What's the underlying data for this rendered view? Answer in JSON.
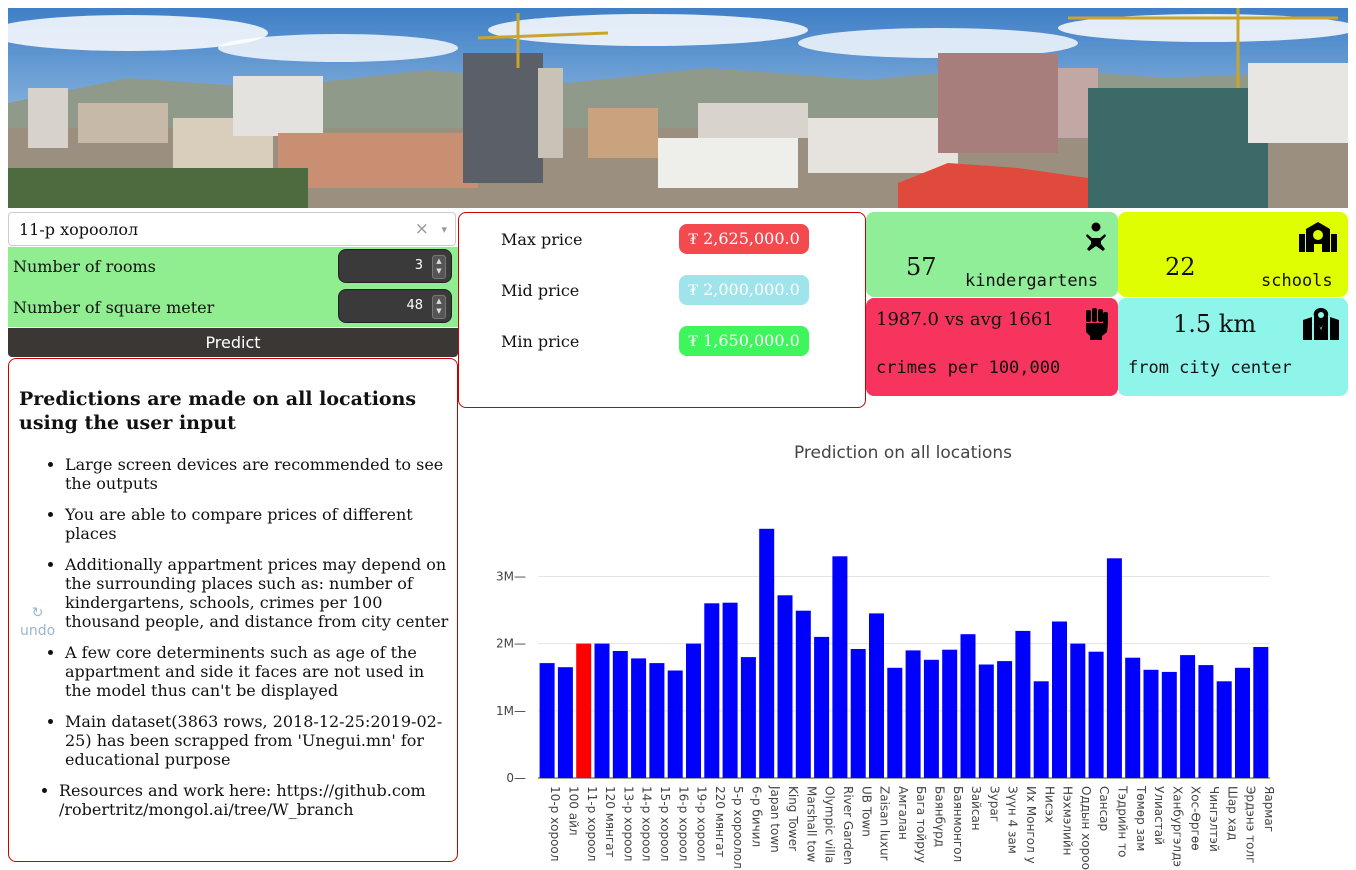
{
  "location_select": {
    "value": "11-р хороолол",
    "clear_icon": "×",
    "arrow_icon": "▾"
  },
  "inputs": {
    "rooms_label": "Number of rooms",
    "rooms_value": "3",
    "sqm_label": "Number of square meter",
    "sqm_value": "48"
  },
  "predict_label": "Predict",
  "info": {
    "heading": "Predictions are made on all locations using the user input",
    "bullets": [
      "Large screen devices are recommended to see the outputs",
      "You are able to compare prices of different places",
      "Additionally appartment prices may depend on the surrounding places such as: number of kindergartens, schools, crimes per 100 thousand people, and distance from city center",
      "A few core determinents such as age of the appartment and side it faces are not used in the model thus can't be displayed",
      "Main dataset(3863 rows, 2018-12-25:2019-02-25) has been scrapped from 'Unegui.mn' for educational purpose",
      "Resources and work here: https://github.com /robertritz/mongol.ai/tree/W_branch"
    ],
    "undo_icon": "↻",
    "undo_label": "undo"
  },
  "prices": {
    "max_label": "Max price",
    "max_value": "₮ 2,625,000.0",
    "max_color": "#f44a4f",
    "mid_label": "Mid price",
    "mid_value": "₮ 2,000,000.0",
    "mid_color": "#9ee4ea",
    "min_label": "Min price",
    "min_value": "₮ 1,650,000.0",
    "min_color": "#3ef55b"
  },
  "stats": {
    "kindergartens": {
      "value": "57",
      "label": "kindergartens",
      "icon": "baby-icon",
      "color": "#90ee98"
    },
    "schools": {
      "value": "22",
      "label": "schools",
      "icon": "school-icon",
      "color": "#dfff00"
    },
    "crimes": {
      "value": "1987.0 vs avg 1661",
      "label": "crimes per 100,000",
      "icon": "fist-icon",
      "color": "#f7345e"
    },
    "distance": {
      "value": "1.5 km",
      "label": "from city center",
      "icon": "map-marker-icon",
      "color": "#8ff5ea"
    }
  },
  "chart_data": {
    "type": "bar",
    "title": "Prediction on all locations",
    "xlabel": "",
    "ylabel": "",
    "ylim": [
      0,
      3900000
    ],
    "yticks": [
      0,
      1000000,
      2000000,
      3000000
    ],
    "ytick_labels": [
      "0",
      "1M",
      "2M",
      "3M"
    ],
    "bar_color": "#0000ff",
    "highlight_color": "#ff0000",
    "highlight_index": 2,
    "categories": [
      "10-р хороол",
      "100 айл",
      "11-р хороол",
      "120 мянгат",
      "13-р хороол",
      "14-р хороол",
      "15-р хороол",
      "16-р хороол",
      "19-р хороол",
      "220 мянгат",
      "5-р хороолол",
      "6-р бичил",
      "Japan town",
      "King Tower",
      "Marshall tow",
      "Olympic villa",
      "River Garden",
      "UB Town",
      "Zaisan luxur",
      "Амгалан",
      "Бага тойруу",
      "Баянбүрд",
      "Баянмонгол",
      "Зайсан",
      "Зураг",
      "Зүүн 4 зам",
      "Их Монгол у",
      "Нисэх",
      "Нэхмэлийн",
      "Оддын хороо",
      "Сансар",
      "Тэдрийн то",
      "Төмөр зам",
      "Улиастай",
      "Ханбургэлдэ",
      "Хос-Өргөө",
      "Чингэлтэй",
      "Шар хад",
      "Эрдэнэ толг",
      "Яармаг"
    ],
    "values": [
      1710000,
      1650000,
      2000000,
      2000000,
      1890000,
      1780000,
      1710000,
      1600000,
      2000000,
      2600000,
      2610000,
      1800000,
      3710000,
      2720000,
      2490000,
      2100000,
      3300000,
      1920000,
      2450000,
      1640000,
      1900000,
      1760000,
      1910000,
      2140000,
      1690000,
      1740000,
      2190000,
      1440000,
      2330000,
      2000000,
      1880000,
      3270000,
      1790000,
      1610000,
      1580000,
      1830000,
      1680000,
      1440000,
      1640000,
      1950000
    ]
  }
}
